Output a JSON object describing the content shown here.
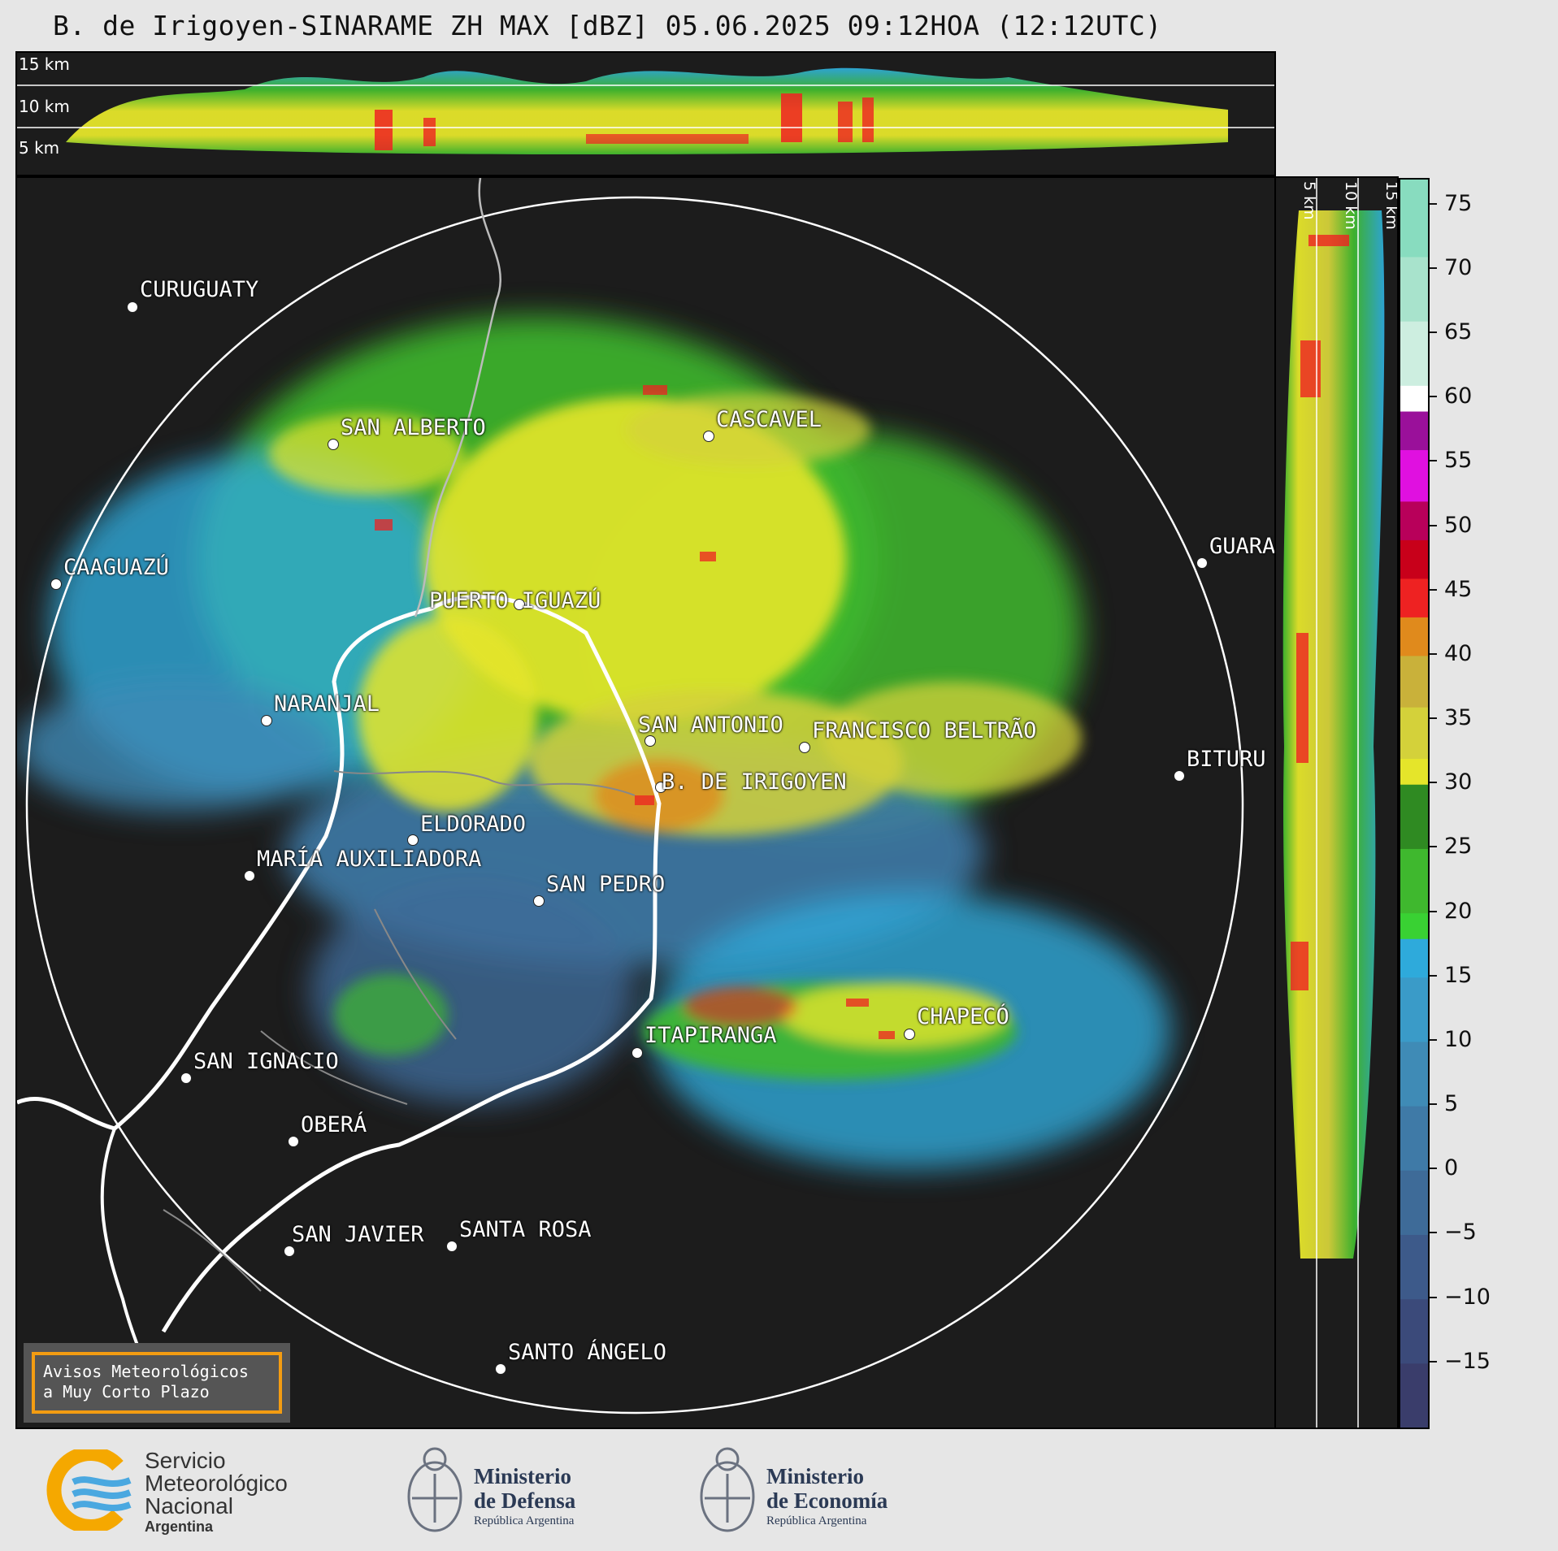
{
  "title": "B. de Irigoyen-SINARAME ZH MAX [dBZ] 05.06.2025 09:12HOA (12:12UTC)",
  "top_panel": {
    "height_labels": [
      "15 km",
      "10 km",
      "5 km"
    ]
  },
  "side_panel": {
    "height_labels": [
      "5 km",
      "10 km",
      "15 km"
    ]
  },
  "colorbar": {
    "unit": "dBZ",
    "min": -20,
    "max": 77,
    "ticks": [
      "75",
      "70",
      "65",
      "60",
      "55",
      "50",
      "45",
      "40",
      "35",
      "30",
      "25",
      "20",
      "15",
      "10",
      "5",
      "0",
      "−5",
      "−10",
      "−15"
    ],
    "tick_values": [
      75,
      70,
      65,
      60,
      55,
      50,
      45,
      40,
      35,
      30,
      25,
      20,
      15,
      10,
      5,
      0,
      -5,
      -10,
      -15
    ],
    "bands": [
      {
        "from": -20,
        "to": -15,
        "color": "#3a3d6b"
      },
      {
        "from": -15,
        "to": -10,
        "color": "#3b4a7a"
      },
      {
        "from": -10,
        "to": -5,
        "color": "#3d5a8a"
      },
      {
        "from": -5,
        "to": 0,
        "color": "#3e6b98"
      },
      {
        "from": 0,
        "to": 5,
        "color": "#3f7aa7"
      },
      {
        "from": 5,
        "to": 10,
        "color": "#3f8bb6"
      },
      {
        "from": 10,
        "to": 15,
        "color": "#3a9bc8"
      },
      {
        "from": 15,
        "to": 18,
        "color": "#2eaadb"
      },
      {
        "from": 18,
        "to": 20,
        "color": "#39d133"
      },
      {
        "from": 20,
        "to": 25,
        "color": "#3fb82e"
      },
      {
        "from": 25,
        "to": 30,
        "color": "#2f8a22"
      },
      {
        "from": 30,
        "to": 32,
        "color": "#e5e52a"
      },
      {
        "from": 32,
        "to": 36,
        "color": "#d4d13a"
      },
      {
        "from": 36,
        "to": 40,
        "color": "#c9b13a"
      },
      {
        "from": 40,
        "to": 43,
        "color": "#e08a1c"
      },
      {
        "from": 43,
        "to": 46,
        "color": "#ee2222"
      },
      {
        "from": 46,
        "to": 49,
        "color": "#c8001a"
      },
      {
        "from": 49,
        "to": 52,
        "color": "#b8005a"
      },
      {
        "from": 52,
        "to": 56,
        "color": "#e010e0"
      },
      {
        "from": 56,
        "to": 59,
        "color": "#9a109a"
      },
      {
        "from": 59,
        "to": 61,
        "color": "#ffffff"
      },
      {
        "from": 61,
        "to": 66,
        "color": "#cdeee0"
      },
      {
        "from": 66,
        "to": 71,
        "color": "#a8e3cc"
      },
      {
        "from": 71,
        "to": 77,
        "color": "#88dcbf"
      }
    ]
  },
  "cities": [
    {
      "name": "CURUGUATY"
    },
    {
      "name": "SAN ALBERTO"
    },
    {
      "name": "CASCAVEL"
    },
    {
      "name": "CAAGUAZÚ"
    },
    {
      "name": "GUARA"
    },
    {
      "name": "PUERTO IGUAZÚ"
    },
    {
      "name": "NARANJAL"
    },
    {
      "name": "SAN ANTONIO"
    },
    {
      "name": "FRANCISCO BELTRÃO"
    },
    {
      "name": "BITURU"
    },
    {
      "name": "B. DE IRIGOYEN"
    },
    {
      "name": "ELDORADO"
    },
    {
      "name": "MARÍA AUXILIADORA"
    },
    {
      "name": "SAN PEDRO"
    },
    {
      "name": "ITAPIRANGA"
    },
    {
      "name": "CHAPECÓ"
    },
    {
      "name": "SAN IGNACIO"
    },
    {
      "name": "OBERÁ"
    },
    {
      "name": "SAN JAVIER"
    },
    {
      "name": "SANTA ROSA"
    },
    {
      "name": "SANTO ÁNGELO"
    }
  ],
  "notice": {
    "line1": "Avisos Meteorológicos",
    "line2": "a Muy Corto Plazo"
  },
  "footer": {
    "smn": {
      "line1": "Servicio",
      "line2": "Meteorológico",
      "line3": "Nacional",
      "line4": "Argentina"
    },
    "defensa": {
      "line1": "Ministerio",
      "line2": "de Defensa",
      "line3": "República Argentina"
    },
    "economia": {
      "line1": "Ministerio",
      "line2": "de Economía",
      "line3": "República Argentina"
    }
  },
  "icons": [
    "smn-logo-icon",
    "argentina-coat-of-arms-icon"
  ]
}
